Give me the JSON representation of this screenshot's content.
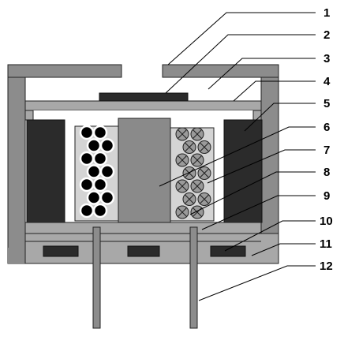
{
  "diagram": {
    "callouts": [
      {
        "label": "1"
      },
      {
        "label": "2"
      },
      {
        "label": "3"
      },
      {
        "label": "4"
      },
      {
        "label": "5"
      },
      {
        "label": "6"
      },
      {
        "label": "7"
      },
      {
        "label": "8"
      },
      {
        "label": "9"
      },
      {
        "label": "10"
      },
      {
        "label": "11"
      },
      {
        "label": "12"
      }
    ]
  },
  "colors": {
    "housing": "#8c8c8c",
    "plate": "#a8a8a8",
    "magnet": "#2b2b2b",
    "core": "#8a8a8a",
    "coil_bg": "#d4d4d4",
    "dark_circle": "#000000",
    "crossed_circle": "#9a9a9a",
    "stroke": "#222222",
    "line": "#000000"
  }
}
